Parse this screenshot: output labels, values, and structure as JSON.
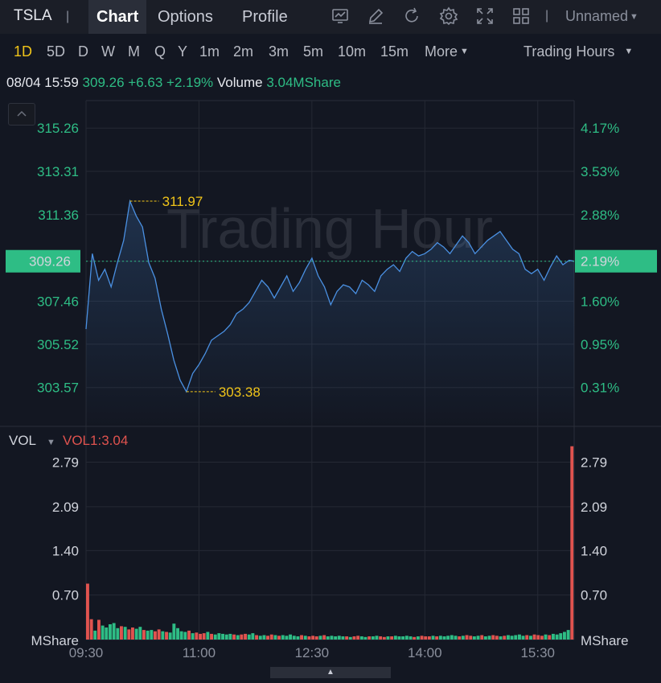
{
  "toolbar": {
    "ticker": "TSLA",
    "tabs": [
      {
        "label": "Chart",
        "active": true
      },
      {
        "label": "Options",
        "active": false
      },
      {
        "label": "Profile",
        "active": false
      }
    ],
    "icons": [
      "indicator-icon",
      "draw-icon",
      "refresh-icon",
      "settings-icon",
      "fullscreen-icon",
      "layout-grid-icon"
    ],
    "layout_name": "Unnamed"
  },
  "intervals": {
    "items": [
      "1D",
      "5D",
      "D",
      "W",
      "M",
      "Q",
      "Y",
      "1m",
      "2m",
      "3m",
      "5m",
      "10m",
      "15m"
    ],
    "active": "1D",
    "more_label": "More",
    "session_label": "Trading Hours"
  },
  "info": {
    "datetime": "08/04 15:59",
    "price": "309.26",
    "change": "+6.63",
    "change_pct": "+2.19%",
    "volume_label": "Volume",
    "volume_value": "3.04MShare"
  },
  "colors": {
    "up": "#2ebd85",
    "down": "#e0534f",
    "line": "#4a90e2",
    "marker": "#f0c419",
    "background": "#131722"
  },
  "chart_data": [
    {
      "type": "line",
      "watermark": "Trading Hour",
      "y_ticks_left": [
        "315.26",
        "313.31",
        "311.36",
        "309.26",
        "307.46",
        "305.52",
        "303.57"
      ],
      "y_ticks_right": [
        "4.17%",
        "3.53%",
        "2.88%",
        "2.19%",
        "1.60%",
        "0.95%",
        "0.31%"
      ],
      "ylim": [
        302.0,
        316.5
      ],
      "current_price_label": "309.26",
      "current_pct_label": "2.19%",
      "high_label": "311.97",
      "low_label": "303.38",
      "x": [
        "09:30",
        "09:35",
        "09:40",
        "09:45",
        "09:50",
        "09:55",
        "10:00",
        "10:05",
        "10:10",
        "10:15",
        "10:20",
        "10:25",
        "10:30",
        "10:35",
        "10:40",
        "10:45",
        "10:50",
        "10:55",
        "11:00",
        "11:05",
        "11:10",
        "11:15",
        "11:20",
        "11:25",
        "11:30",
        "11:35",
        "11:40",
        "11:45",
        "11:50",
        "11:55",
        "12:00",
        "12:05",
        "12:10",
        "12:15",
        "12:20",
        "12:25",
        "12:30",
        "12:35",
        "12:40",
        "12:45",
        "12:50",
        "12:55",
        "13:00",
        "13:05",
        "13:10",
        "13:15",
        "13:20",
        "13:25",
        "13:30",
        "13:35",
        "13:40",
        "13:45",
        "13:50",
        "13:55",
        "14:00",
        "14:05",
        "14:10",
        "14:15",
        "14:20",
        "14:25",
        "14:30",
        "14:35",
        "14:40",
        "14:45",
        "14:50",
        "14:55",
        "15:00",
        "15:05",
        "15:10",
        "15:15",
        "15:20",
        "15:25",
        "15:30",
        "15:35",
        "15:40",
        "15:45",
        "15:50",
        "15:55",
        "15:59"
      ],
      "y": [
        306.2,
        309.6,
        308.4,
        308.9,
        308.1,
        309.2,
        310.2,
        311.97,
        311.3,
        310.8,
        309.2,
        308.5,
        307.1,
        306.0,
        304.8,
        303.9,
        303.38,
        304.2,
        304.6,
        305.1,
        305.7,
        305.9,
        306.1,
        306.4,
        306.9,
        307.1,
        307.4,
        307.9,
        308.4,
        308.1,
        307.6,
        308.1,
        308.6,
        307.9,
        308.3,
        308.9,
        309.4,
        308.6,
        308.1,
        307.3,
        307.9,
        308.2,
        308.1,
        307.8,
        308.4,
        308.2,
        307.9,
        308.6,
        308.9,
        309.1,
        308.8,
        309.4,
        309.7,
        309.5,
        309.6,
        309.8,
        310.1,
        309.9,
        309.6,
        310.0,
        310.4,
        310.1,
        309.6,
        309.9,
        310.2,
        310.4,
        310.6,
        310.2,
        309.8,
        309.6,
        308.9,
        308.7,
        308.9,
        308.4,
        309.0,
        309.5,
        309.1,
        309.3,
        309.26
      ],
      "session_start": "09:30",
      "session_end": "15:59"
    },
    {
      "type": "bar",
      "series_label": "VOL",
      "indicator_label": "VOL1:3.04",
      "unit": "MShare",
      "y_ticks": [
        "2.79",
        "2.09",
        "1.40",
        "0.70"
      ],
      "ylim": [
        0,
        3.1
      ],
      "x_ticks": [
        "09:30",
        "11:00",
        "12:30",
        "14:00",
        "15:30"
      ],
      "bar_count": 130,
      "values": [
        0.88,
        0.32,
        0.14,
        0.31,
        0.22,
        0.19,
        0.24,
        0.26,
        0.18,
        0.21,
        0.2,
        0.16,
        0.19,
        0.17,
        0.2,
        0.15,
        0.14,
        0.15,
        0.13,
        0.16,
        0.13,
        0.12,
        0.11,
        0.25,
        0.18,
        0.13,
        0.12,
        0.14,
        0.1,
        0.11,
        0.09,
        0.1,
        0.12,
        0.09,
        0.08,
        0.1,
        0.09,
        0.08,
        0.09,
        0.08,
        0.07,
        0.08,
        0.09,
        0.08,
        0.1,
        0.07,
        0.06,
        0.07,
        0.06,
        0.08,
        0.07,
        0.06,
        0.07,
        0.06,
        0.08,
        0.06,
        0.05,
        0.07,
        0.06,
        0.05,
        0.06,
        0.05,
        0.06,
        0.07,
        0.05,
        0.06,
        0.05,
        0.06,
        0.05,
        0.05,
        0.04,
        0.05,
        0.06,
        0.05,
        0.04,
        0.05,
        0.05,
        0.06,
        0.05,
        0.04,
        0.05,
        0.05,
        0.06,
        0.05,
        0.05,
        0.06,
        0.05,
        0.04,
        0.05,
        0.06,
        0.05,
        0.05,
        0.06,
        0.05,
        0.06,
        0.05,
        0.06,
        0.07,
        0.06,
        0.05,
        0.06,
        0.07,
        0.06,
        0.05,
        0.06,
        0.07,
        0.05,
        0.06,
        0.07,
        0.06,
        0.05,
        0.06,
        0.07,
        0.06,
        0.07,
        0.08,
        0.06,
        0.07,
        0.06,
        0.08,
        0.07,
        0.06,
        0.08,
        0.07,
        0.09,
        0.08,
        0.1,
        0.12,
        0.15,
        3.04
      ],
      "directions": "mixed"
    }
  ]
}
